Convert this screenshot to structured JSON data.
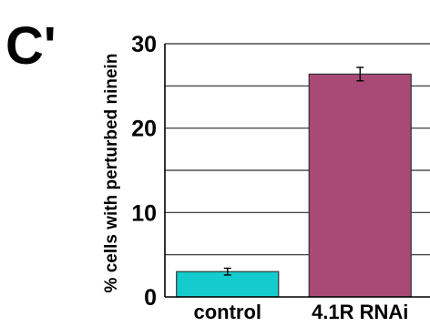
{
  "panel_label": "C'",
  "chart_data": {
    "type": "bar",
    "categories": [
      "control",
      "4.1R RNAi"
    ],
    "values": [
      3.0,
      26.4
    ],
    "errors": [
      0.4,
      0.8
    ],
    "title": "",
    "xlabel": "",
    "ylabel": "% cells with perturbed ninein",
    "ylim": [
      0,
      30
    ],
    "yticks": [
      0,
      10,
      20,
      30
    ],
    "gridlines": [
      5,
      10,
      15,
      20,
      25,
      30
    ],
    "grid": true,
    "colors": [
      "#14cccd",
      "#a84a75"
    ]
  }
}
